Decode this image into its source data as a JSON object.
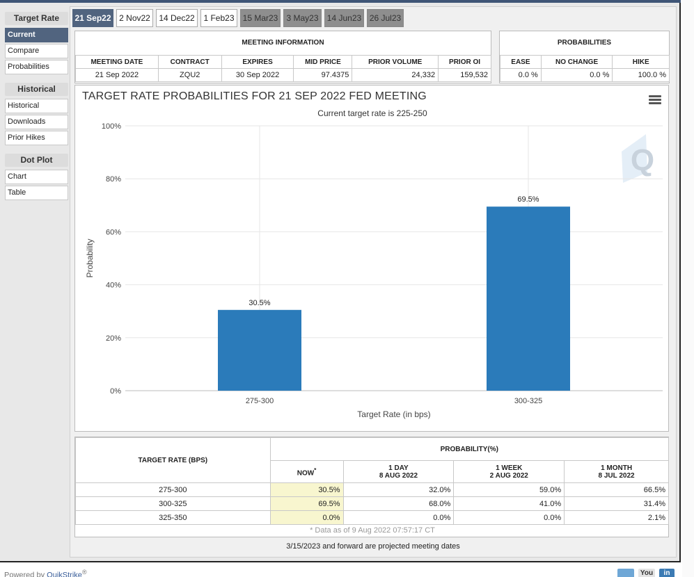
{
  "sidebar": {
    "groups": [
      {
        "heading": "Target Rate",
        "items": [
          "Current",
          "Compare",
          "Probabilities"
        ]
      },
      {
        "heading": "Historical",
        "items": [
          "Historical",
          "Downloads",
          "Prior Hikes"
        ]
      },
      {
        "heading": "Dot Plot",
        "items": [
          "Chart",
          "Table"
        ]
      }
    ],
    "active_item": "Current"
  },
  "tabs": [
    {
      "label": "21 Sep22",
      "state": "active"
    },
    {
      "label": "2 Nov22",
      "state": "normal"
    },
    {
      "label": "14 Dec22",
      "state": "normal"
    },
    {
      "label": "1 Feb23",
      "state": "normal"
    },
    {
      "label": "15 Mar23",
      "state": "future"
    },
    {
      "label": "3 May23",
      "state": "future"
    },
    {
      "label": "14 Jun23",
      "state": "future"
    },
    {
      "label": "26 Jul23",
      "state": "future"
    }
  ],
  "meeting_info": {
    "title": "MEETING INFORMATION",
    "headers": [
      "MEETING DATE",
      "CONTRACT",
      "EXPIRES",
      "MID PRICE",
      "PRIOR VOLUME",
      "PRIOR OI"
    ],
    "values": [
      "21 Sep 2022",
      "ZQU2",
      "30 Sep 2022",
      "97.4375",
      "24,332",
      "159,532"
    ]
  },
  "probabilities": {
    "title": "PROBABILITIES",
    "headers": [
      "EASE",
      "NO CHANGE",
      "HIKE"
    ],
    "values": [
      "0.0 %",
      "0.0 %",
      "100.0 %"
    ]
  },
  "chart": {
    "title": "TARGET RATE PROBABILITIES FOR 21 SEP 2022 FED MEETING",
    "subtitle": "Current target rate is 225-250",
    "watermark": "Q",
    "menu_icon": "hamburger-menu-icon"
  },
  "chart_data": {
    "type": "bar",
    "title": "TARGET RATE PROBABILITIES FOR 21 SEP 2022 FED MEETING",
    "subtitle": "Current target rate is 225-250",
    "categories": [
      "275-300",
      "300-325"
    ],
    "values": [
      30.5,
      69.5
    ],
    "value_labels": [
      "30.5%",
      "69.5%"
    ],
    "xlabel": "Target Rate (in bps)",
    "ylabel": "Probability",
    "ylim": [
      0,
      100
    ],
    "yticks": [
      "0%",
      "20%",
      "40%",
      "60%",
      "80%",
      "100%"
    ],
    "bar_color": "#2b7bba",
    "grid": true
  },
  "prob_table": {
    "rate_header": "TARGET RATE (BPS)",
    "group_header": "PROBABILITY(%)",
    "col_now": "NOW",
    "now_marker": "*",
    "cols": [
      {
        "line1": "1 DAY",
        "line2": "8 AUG 2022"
      },
      {
        "line1": "1 WEEK",
        "line2": "2 AUG 2022"
      },
      {
        "line1": "1 MONTH",
        "line2": "8 JUL 2022"
      }
    ],
    "rows": [
      {
        "rate": "275-300",
        "now": "30.5%",
        "d1": "32.0%",
        "w1": "59.0%",
        "m1": "66.5%"
      },
      {
        "rate": "300-325",
        "now": "69.5%",
        "d1": "68.0%",
        "w1": "41.0%",
        "m1": "31.4%"
      },
      {
        "rate": "325-350",
        "now": "0.0%",
        "d1": "0.0%",
        "w1": "0.0%",
        "m1": "2.1%"
      }
    ],
    "footnote": "* Data as of 9 Aug 2022 07:57:17 CT"
  },
  "projected_note": "3/15/2023 and forward are projected meeting dates",
  "footer": {
    "powered_prefix": "Powered by ",
    "brand": "QuikStrike",
    "reg": "®"
  },
  "social": {
    "twitter": "twitter-icon",
    "youtube": "You",
    "linkedin": "in"
  }
}
